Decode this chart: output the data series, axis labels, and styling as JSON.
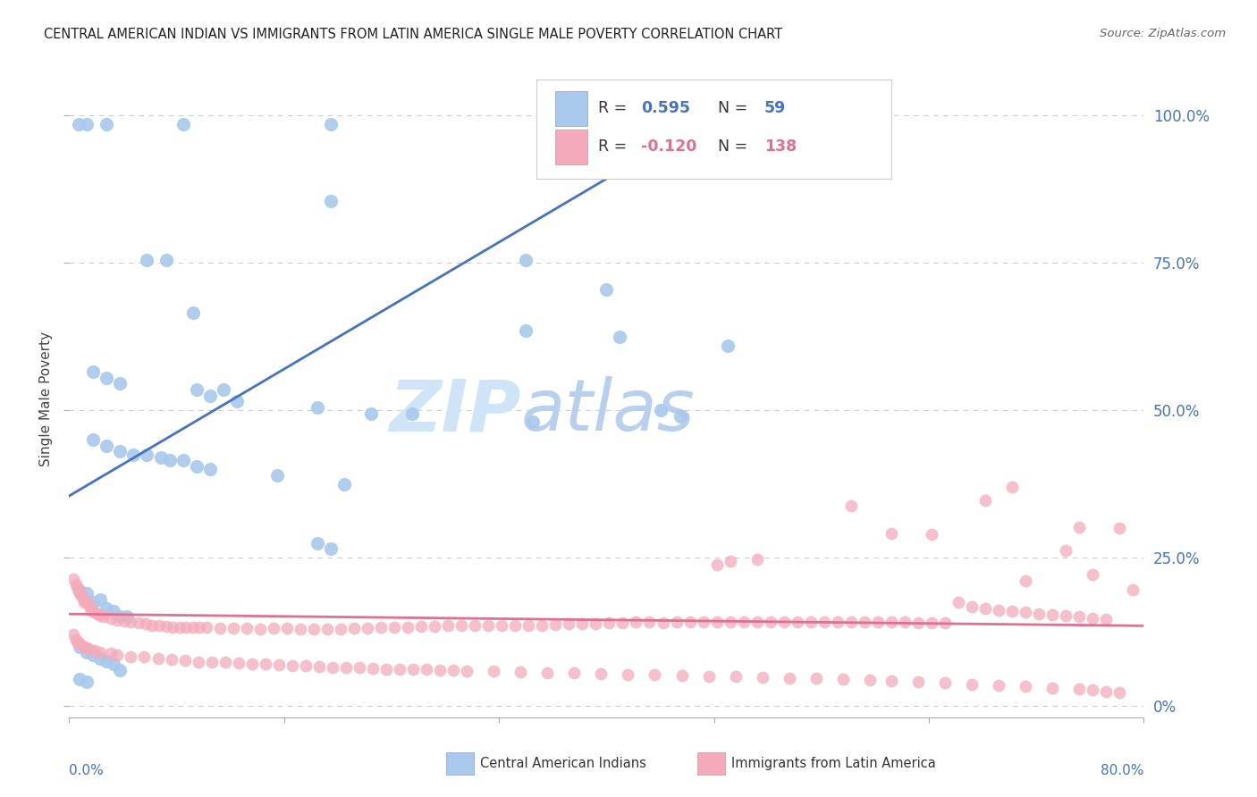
{
  "title": "CENTRAL AMERICAN INDIAN VS IMMIGRANTS FROM LATIN AMERICA SINGLE MALE POVERTY CORRELATION CHART",
  "source": "Source: ZipAtlas.com",
  "ylabel": "Single Male Poverty",
  "ytick_vals": [
    0.0,
    0.25,
    0.5,
    0.75,
    1.0
  ],
  "ytick_labels": [
    "0%",
    "25.0%",
    "50.0%",
    "75.0%",
    "100.0%"
  ],
  "xlim": [
    0.0,
    0.8
  ],
  "ylim": [
    -0.02,
    1.06
  ],
  "blue_color": "#A8C8EC",
  "pink_color": "#F4AABB",
  "blue_line_color": "#4472C4",
  "pink_line_color": "#E07090",
  "right_tick_color": "#4472C4",
  "watermark_zip_color": "#C5D8F0",
  "watermark_atlas_color": "#AABFE8",
  "bg_color": "#FFFFFF",
  "grid_color": "#CCCCCC",
  "grid_style": "--",
  "blue_line_x0": 0.0,
  "blue_line_y0": 0.355,
  "blue_line_x1": 0.51,
  "blue_line_y1": 1.04,
  "pink_line_x0": 0.0,
  "pink_line_x1": 0.8,
  "pink_line_y0": 0.155,
  "pink_line_y1": 0.135,
  "blue_dots": [
    [
      0.007,
      0.985
    ],
    [
      0.013,
      0.985
    ],
    [
      0.028,
      0.985
    ],
    [
      0.085,
      0.985
    ],
    [
      0.195,
      0.985
    ],
    [
      0.36,
      0.985
    ],
    [
      0.195,
      0.855
    ],
    [
      0.34,
      0.755
    ],
    [
      0.4,
      0.705
    ],
    [
      0.058,
      0.755
    ],
    [
      0.072,
      0.755
    ],
    [
      0.092,
      0.665
    ],
    [
      0.34,
      0.635
    ],
    [
      0.41,
      0.625
    ],
    [
      0.49,
      0.61
    ],
    [
      0.018,
      0.565
    ],
    [
      0.028,
      0.555
    ],
    [
      0.038,
      0.545
    ],
    [
      0.095,
      0.535
    ],
    [
      0.105,
      0.525
    ],
    [
      0.115,
      0.535
    ],
    [
      0.125,
      0.515
    ],
    [
      0.185,
      0.505
    ],
    [
      0.225,
      0.495
    ],
    [
      0.255,
      0.495
    ],
    [
      0.345,
      0.48
    ],
    [
      0.44,
      0.5
    ],
    [
      0.455,
      0.49
    ],
    [
      0.018,
      0.45
    ],
    [
      0.028,
      0.44
    ],
    [
      0.038,
      0.43
    ],
    [
      0.048,
      0.425
    ],
    [
      0.058,
      0.425
    ],
    [
      0.068,
      0.42
    ],
    [
      0.075,
      0.415
    ],
    [
      0.085,
      0.415
    ],
    [
      0.095,
      0.405
    ],
    [
      0.105,
      0.4
    ],
    [
      0.155,
      0.39
    ],
    [
      0.205,
      0.375
    ],
    [
      0.185,
      0.275
    ],
    [
      0.195,
      0.265
    ],
    [
      0.008,
      0.195
    ],
    [
      0.013,
      0.19
    ],
    [
      0.018,
      0.175
    ],
    [
      0.023,
      0.18
    ],
    [
      0.028,
      0.165
    ],
    [
      0.033,
      0.16
    ],
    [
      0.038,
      0.15
    ],
    [
      0.043,
      0.15
    ],
    [
      0.008,
      0.1
    ],
    [
      0.013,
      0.09
    ],
    [
      0.018,
      0.085
    ],
    [
      0.023,
      0.08
    ],
    [
      0.028,
      0.075
    ],
    [
      0.033,
      0.07
    ],
    [
      0.038,
      0.06
    ],
    [
      0.008,
      0.045
    ],
    [
      0.013,
      0.04
    ]
  ],
  "pink_dots": [
    [
      0.003,
      0.215
    ],
    [
      0.005,
      0.205
    ],
    [
      0.006,
      0.2
    ],
    [
      0.007,
      0.195
    ],
    [
      0.008,
      0.19
    ],
    [
      0.009,
      0.185
    ],
    [
      0.011,
      0.18
    ],
    [
      0.011,
      0.175
    ],
    [
      0.013,
      0.175
    ],
    [
      0.015,
      0.17
    ],
    [
      0.016,
      0.165
    ],
    [
      0.017,
      0.16
    ],
    [
      0.019,
      0.158
    ],
    [
      0.021,
      0.155
    ],
    [
      0.023,
      0.152
    ],
    [
      0.026,
      0.15
    ],
    [
      0.031,
      0.147
    ],
    [
      0.036,
      0.145
    ],
    [
      0.041,
      0.143
    ],
    [
      0.046,
      0.142
    ],
    [
      0.003,
      0.12
    ],
    [
      0.005,
      0.112
    ],
    [
      0.006,
      0.108
    ],
    [
      0.008,
      0.105
    ],
    [
      0.009,
      0.103
    ],
    [
      0.011,
      0.1
    ],
    [
      0.013,
      0.098
    ],
    [
      0.016,
      0.095
    ],
    [
      0.019,
      0.093
    ],
    [
      0.023,
      0.09
    ],
    [
      0.031,
      0.088
    ],
    [
      0.036,
      0.086
    ],
    [
      0.046,
      0.083
    ],
    [
      0.056,
      0.082
    ],
    [
      0.066,
      0.08
    ],
    [
      0.076,
      0.078
    ],
    [
      0.086,
      0.076
    ],
    [
      0.096,
      0.074
    ],
    [
      0.052,
      0.14
    ],
    [
      0.057,
      0.138
    ],
    [
      0.062,
      0.136
    ],
    [
      0.067,
      0.135
    ],
    [
      0.072,
      0.134
    ],
    [
      0.077,
      0.133
    ],
    [
      0.082,
      0.133
    ],
    [
      0.087,
      0.132
    ],
    [
      0.092,
      0.132
    ],
    [
      0.097,
      0.132
    ],
    [
      0.102,
      0.132
    ],
    [
      0.112,
      0.131
    ],
    [
      0.122,
      0.131
    ],
    [
      0.132,
      0.131
    ],
    [
      0.142,
      0.13
    ],
    [
      0.152,
      0.131
    ],
    [
      0.162,
      0.131
    ],
    [
      0.172,
      0.13
    ],
    [
      0.182,
      0.13
    ],
    [
      0.192,
      0.13
    ],
    [
      0.202,
      0.13
    ],
    [
      0.212,
      0.131
    ],
    [
      0.222,
      0.131
    ],
    [
      0.232,
      0.132
    ],
    [
      0.242,
      0.133
    ],
    [
      0.252,
      0.133
    ],
    [
      0.262,
      0.134
    ],
    [
      0.272,
      0.134
    ],
    [
      0.282,
      0.135
    ],
    [
      0.292,
      0.135
    ],
    [
      0.302,
      0.136
    ],
    [
      0.312,
      0.136
    ],
    [
      0.322,
      0.136
    ],
    [
      0.332,
      0.135
    ],
    [
      0.342,
      0.136
    ],
    [
      0.352,
      0.136
    ],
    [
      0.362,
      0.137
    ],
    [
      0.372,
      0.138
    ],
    [
      0.382,
      0.138
    ],
    [
      0.392,
      0.139
    ],
    [
      0.402,
      0.14
    ],
    [
      0.412,
      0.14
    ],
    [
      0.422,
      0.141
    ],
    [
      0.432,
      0.141
    ],
    [
      0.442,
      0.14
    ],
    [
      0.452,
      0.141
    ],
    [
      0.462,
      0.141
    ],
    [
      0.472,
      0.141
    ],
    [
      0.482,
      0.141
    ],
    [
      0.492,
      0.141
    ],
    [
      0.502,
      0.141
    ],
    [
      0.512,
      0.141
    ],
    [
      0.522,
      0.141
    ],
    [
      0.532,
      0.141
    ],
    [
      0.542,
      0.141
    ],
    [
      0.552,
      0.141
    ],
    [
      0.562,
      0.141
    ],
    [
      0.572,
      0.141
    ],
    [
      0.582,
      0.141
    ],
    [
      0.592,
      0.141
    ],
    [
      0.602,
      0.141
    ],
    [
      0.612,
      0.141
    ],
    [
      0.622,
      0.141
    ],
    [
      0.632,
      0.14
    ],
    [
      0.642,
      0.14
    ],
    [
      0.652,
      0.14
    ],
    [
      0.106,
      0.074
    ],
    [
      0.116,
      0.073
    ],
    [
      0.126,
      0.072
    ],
    [
      0.136,
      0.071
    ],
    [
      0.146,
      0.07
    ],
    [
      0.156,
      0.069
    ],
    [
      0.166,
      0.068
    ],
    [
      0.176,
      0.067
    ],
    [
      0.186,
      0.066
    ],
    [
      0.196,
      0.065
    ],
    [
      0.206,
      0.064
    ],
    [
      0.216,
      0.064
    ],
    [
      0.226,
      0.063
    ],
    [
      0.236,
      0.062
    ],
    [
      0.246,
      0.062
    ],
    [
      0.256,
      0.061
    ],
    [
      0.266,
      0.061
    ],
    [
      0.276,
      0.06
    ],
    [
      0.286,
      0.06
    ],
    [
      0.296,
      0.059
    ],
    [
      0.316,
      0.058
    ],
    [
      0.336,
      0.057
    ],
    [
      0.356,
      0.056
    ],
    [
      0.376,
      0.055
    ],
    [
      0.396,
      0.054
    ],
    [
      0.416,
      0.053
    ],
    [
      0.436,
      0.052
    ],
    [
      0.456,
      0.051
    ],
    [
      0.476,
      0.05
    ],
    [
      0.496,
      0.049
    ],
    [
      0.516,
      0.048
    ],
    [
      0.536,
      0.047
    ],
    [
      0.556,
      0.046
    ],
    [
      0.576,
      0.045
    ],
    [
      0.596,
      0.044
    ],
    [
      0.482,
      0.238
    ],
    [
      0.492,
      0.245
    ],
    [
      0.512,
      0.248
    ],
    [
      0.582,
      0.338
    ],
    [
      0.612,
      0.292
    ],
    [
      0.642,
      0.29
    ],
    [
      0.682,
      0.348
    ],
    [
      0.742,
      0.262
    ],
    [
      0.702,
      0.37
    ],
    [
      0.752,
      0.302
    ],
    [
      0.782,
      0.3
    ],
    [
      0.712,
      0.212
    ],
    [
      0.762,
      0.222
    ],
    [
      0.662,
      0.175
    ],
    [
      0.672,
      0.168
    ],
    [
      0.682,
      0.165
    ],
    [
      0.692,
      0.162
    ],
    [
      0.702,
      0.16
    ],
    [
      0.712,
      0.158
    ],
    [
      0.722,
      0.156
    ],
    [
      0.732,
      0.154
    ],
    [
      0.742,
      0.152
    ],
    [
      0.752,
      0.15
    ],
    [
      0.762,
      0.148
    ],
    [
      0.772,
      0.146
    ],
    [
      0.612,
      0.042
    ],
    [
      0.632,
      0.04
    ],
    [
      0.652,
      0.038
    ],
    [
      0.672,
      0.036
    ],
    [
      0.692,
      0.034
    ],
    [
      0.712,
      0.032
    ],
    [
      0.732,
      0.03
    ],
    [
      0.752,
      0.028
    ],
    [
      0.762,
      0.026
    ],
    [
      0.772,
      0.024
    ],
    [
      0.782,
      0.022
    ],
    [
      0.792,
      0.196
    ]
  ]
}
